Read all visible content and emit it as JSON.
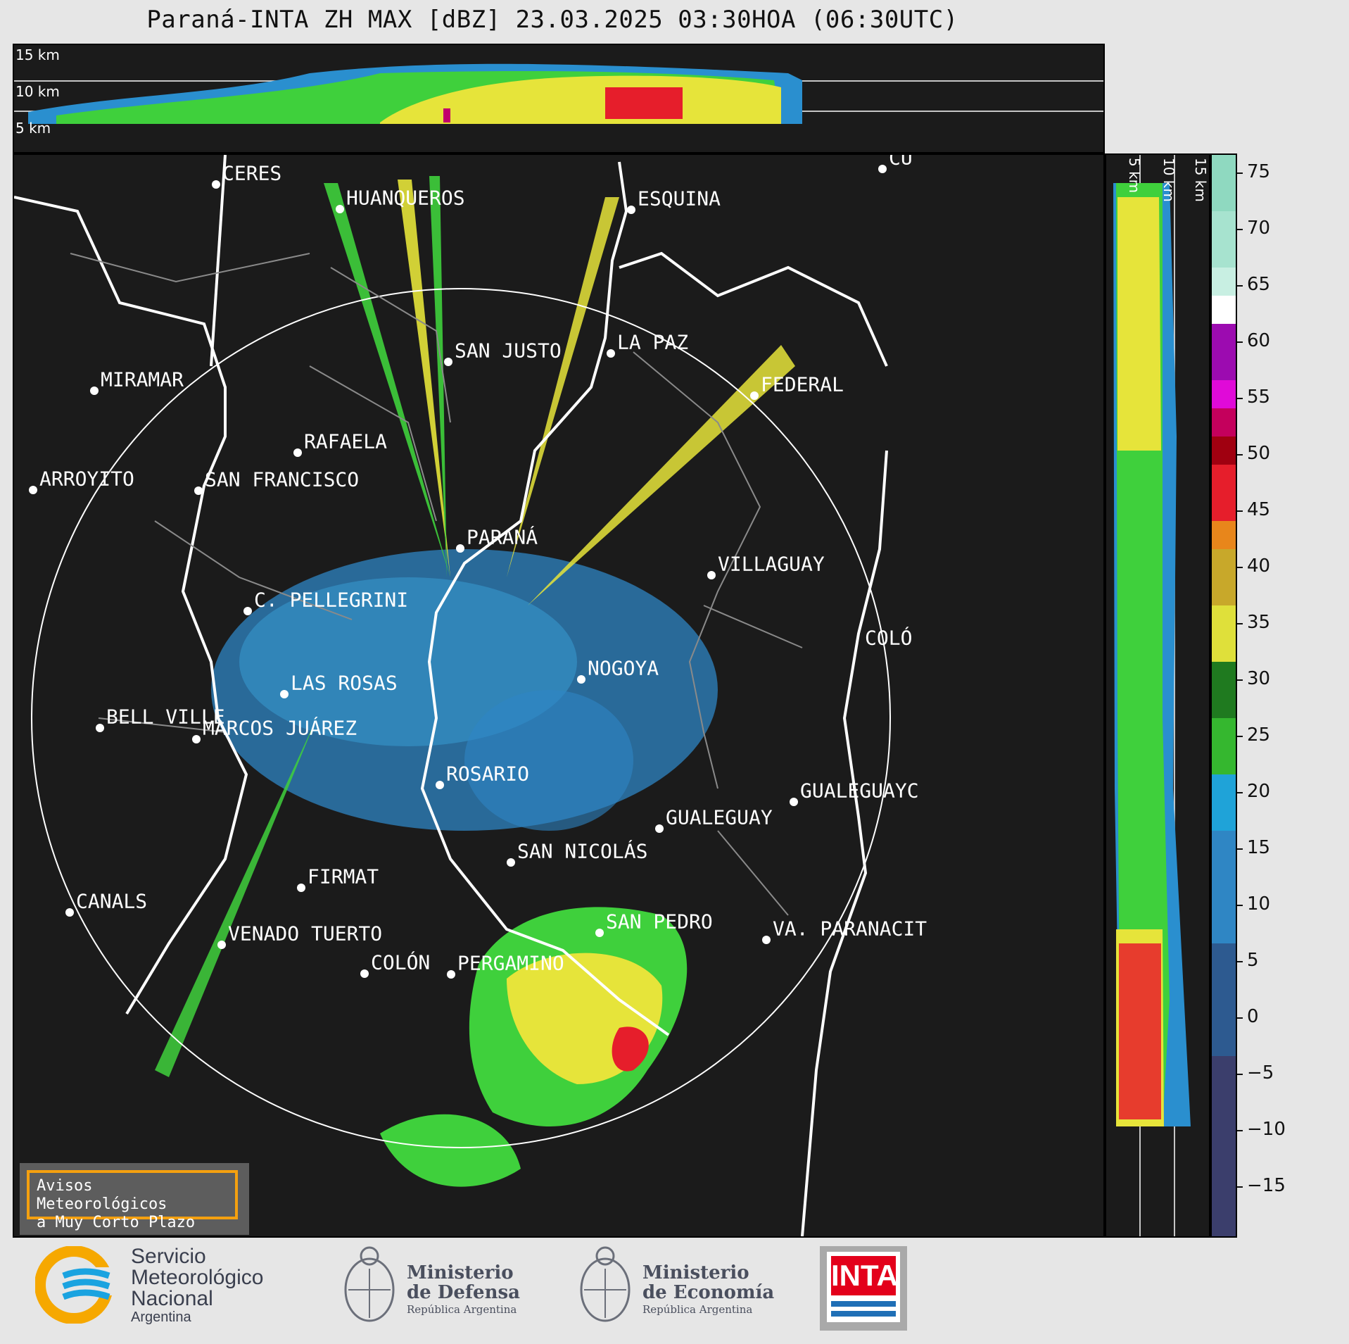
{
  "title": "Paraná-INTA ZH MAX [dBZ] 23.03.2025 03:30HOA (06:30UTC)",
  "top_panel": {
    "height_labels": [
      "15 km",
      "10 km",
      "5 km"
    ]
  },
  "side_panel": {
    "height_labels": [
      "5 km",
      "10 km",
      "15 km"
    ]
  },
  "colorbar": {
    "tick_labels": [
      "75",
      "70",
      "65",
      "60",
      "55",
      "50",
      "45",
      "40",
      "35",
      "30",
      "25",
      "20",
      "15",
      "10",
      "5",
      "0",
      "−5",
      "−10",
      "−15"
    ]
  },
  "cities": [
    {
      "name": "CERES"
    },
    {
      "name": "HUANQUEROS"
    },
    {
      "name": "ESQUINA"
    },
    {
      "name": "CU"
    },
    {
      "name": "SAN JUSTO"
    },
    {
      "name": "LA PAZ"
    },
    {
      "name": "MIRAMAR"
    },
    {
      "name": "FEDERAL"
    },
    {
      "name": "RAFAELA"
    },
    {
      "name": "ARROYITO"
    },
    {
      "name": "SAN FRANCISCO"
    },
    {
      "name": "PARANÁ"
    },
    {
      "name": "VILLAGUAY"
    },
    {
      "name": "C. PELLEGRINI"
    },
    {
      "name": "COLÓ"
    },
    {
      "name": "NOGOYA"
    },
    {
      "name": "LAS ROSAS"
    },
    {
      "name": "BELL VILLE"
    },
    {
      "name": "MARCOS JUÁREZ"
    },
    {
      "name": "ROSARIO"
    },
    {
      "name": "GUALEGUAYC"
    },
    {
      "name": "GUALEGUAY"
    },
    {
      "name": "SAN NICOLÁS"
    },
    {
      "name": "FIRMAT"
    },
    {
      "name": "CANALS"
    },
    {
      "name": "SAN PEDRO"
    },
    {
      "name": "VENADO TUERTO"
    },
    {
      "name": "VA. PARANACIT"
    },
    {
      "name": "COLÓN"
    },
    {
      "name": "PERGAMINO"
    }
  ],
  "aviso": {
    "line1": "Avisos Meteorológicos",
    "line2": "a Muy Corto Plazo"
  },
  "logos": {
    "smn": {
      "line1": "Servicio",
      "line2": "Meteorológico",
      "line3": "Nacional",
      "line4": "Argentina"
    },
    "defensa": {
      "line1": "Ministerio",
      "line2": "de Defensa",
      "line3": "República Argentina"
    },
    "economia": {
      "line1": "Ministerio",
      "line2": "de Economía",
      "line3": "República Argentina"
    },
    "inta": {
      "text": "INTA"
    }
  },
  "colors": {
    "background": "#e6e6e6",
    "panel": "#1b1b1b",
    "aviso_border": "#f4a00f",
    "smn_blue": "#1aa3e0",
    "smn_orange": "#f6a800",
    "inta_red": "#e3001b"
  }
}
